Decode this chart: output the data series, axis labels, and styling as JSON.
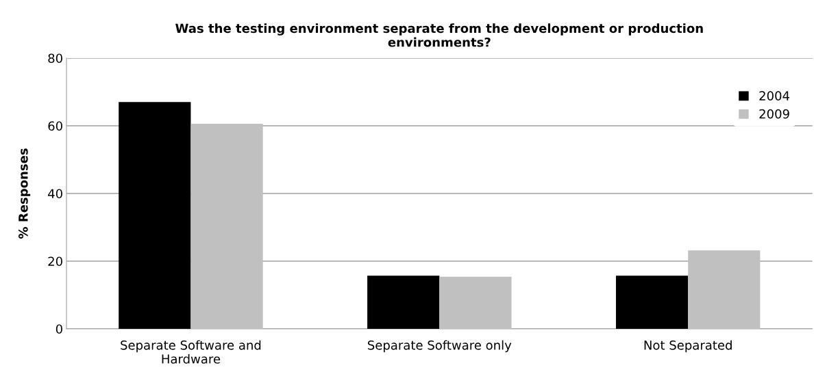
{
  "chart_data": {
    "type": "bar",
    "title": "Was the testing environment separate from the development or production\nenvironments?",
    "ylabel": "% Responses",
    "categories": [
      "Separate Software and\nHardware",
      "Separate Software only",
      "Not Separated"
    ],
    "series": [
      {
        "name": "2004",
        "color": "#000000",
        "values": [
          67,
          15.7,
          15.7
        ]
      },
      {
        "name": "2009",
        "color": "#c0c0c0",
        "values": [
          60.6,
          15.4,
          23.2
        ]
      }
    ],
    "ylim": [
      0,
      80
    ],
    "yticks": [
      0,
      20,
      40,
      60,
      80
    ],
    "grid": "y",
    "legend": "top right"
  }
}
